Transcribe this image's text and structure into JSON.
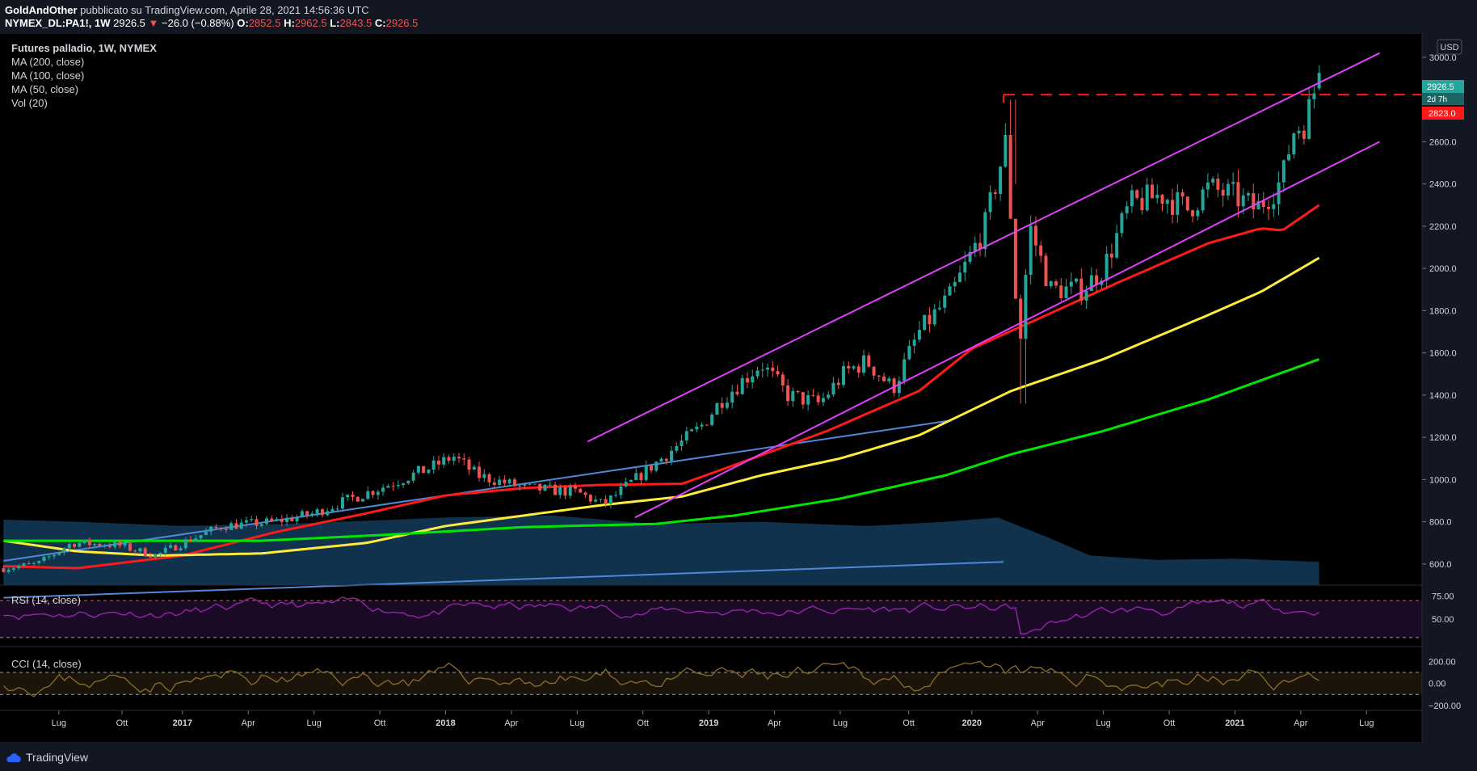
{
  "header": {
    "author": "GoldAndOther",
    "published_text": "pubblicato su TradingView.com, Aprile 28, 2021 14:56:36 UTC",
    "symbol": "NYMEX_DL:PA1!, 1W",
    "last": "2926.5",
    "change": "−26.0 (−0.88%)",
    "o_label": "O:",
    "o_value": "2852.5",
    "h_label": "H:",
    "h_value": "2962.5",
    "l_label": "L:",
    "l_value": "2843.5",
    "c_label": "C:",
    "c_value": "2926.5"
  },
  "legend": {
    "title": "Futures palladio, 1W, NYMEX",
    "ma200": "MA (200, close)",
    "ma100": "MA (100, close)",
    "ma50": "MA (50, close)",
    "vol": "Vol (20)",
    "rsi": "RSI (14, close)",
    "cci": "CCI (14, close)"
  },
  "price_axis": {
    "currency": "USD",
    "last_price_label": "2926.5",
    "last_price_sub": "2d 7h",
    "resistance_label": "2823.0"
  },
  "footer": {
    "brand": "TradingView"
  },
  "colors": {
    "up": "#26a69a",
    "down": "#ef5350",
    "ma200": "#00e600",
    "ma100": "#ffeb3b",
    "ma50": "#ff1a1a",
    "channel": "#e040fb",
    "trend": "#4f87d9",
    "volume": "#11324d",
    "rsi": "#9c27b0",
    "cci": "#8d6e28"
  },
  "chart_data": {
    "type": "candlestick",
    "title": "Futures palladio, 1W, NYMEX",
    "timeframe": "1W",
    "currency": "USD",
    "x_ticks": [
      {
        "label": "Lug",
        "date": 2016.53
      },
      {
        "label": "Ott",
        "date": 2016.77
      },
      {
        "label": "2017",
        "date": 2017.0,
        "bold": true
      },
      {
        "label": "Apr",
        "date": 2017.25
      },
      {
        "label": "Lug",
        "date": 2017.5
      },
      {
        "label": "Ott",
        "date": 2017.75
      },
      {
        "label": "2018",
        "date": 2018.0,
        "bold": true
      },
      {
        "label": "Apr",
        "date": 2018.25
      },
      {
        "label": "Lug",
        "date": 2018.5
      },
      {
        "label": "Ott",
        "date": 2018.75
      },
      {
        "label": "2019",
        "date": 2019.0,
        "bold": true
      },
      {
        "label": "Apr",
        "date": 2019.25
      },
      {
        "label": "Lug",
        "date": 2019.5
      },
      {
        "label": "Ott",
        "date": 2019.76
      },
      {
        "label": "2020",
        "date": 2020.0,
        "bold": true
      },
      {
        "label": "Apr",
        "date": 2020.25
      },
      {
        "label": "Lug",
        "date": 2020.5
      },
      {
        "label": "Ott",
        "date": 2020.75
      },
      {
        "label": "2021",
        "date": 2021.0,
        "bold": true
      },
      {
        "label": "Apr",
        "date": 2021.25
      },
      {
        "label": "Lug",
        "date": 2021.5
      }
    ],
    "y_ticks": [
      "600.0",
      "800.0",
      "1000.0",
      "1200.0",
      "1400.0",
      "1600.0",
      "1800.0",
      "2000.0",
      "2200.0",
      "2400.0",
      "2600.0",
      "3000.0"
    ],
    "ylim": [
      500,
      3080
    ],
    "close_anchors": [
      [
        2016.32,
        580
      ],
      [
        2016.45,
        600
      ],
      [
        2016.58,
        700
      ],
      [
        2016.75,
        690
      ],
      [
        2016.9,
        640
      ],
      [
        2017.0,
        700
      ],
      [
        2017.15,
        780
      ],
      [
        2017.35,
        800
      ],
      [
        2017.5,
        840
      ],
      [
        2017.62,
        900
      ],
      [
        2017.75,
        960
      ],
      [
        2017.95,
        1060
      ],
      [
        2018.03,
        1110
      ],
      [
        2018.12,
        1020
      ],
      [
        2018.3,
        960
      ],
      [
        2018.5,
        940
      ],
      [
        2018.6,
        880
      ],
      [
        2018.72,
        1000
      ],
      [
        2018.85,
        1130
      ],
      [
        2018.97,
        1250
      ],
      [
        2019.05,
        1380
      ],
      [
        2019.2,
        1550
      ],
      [
        2019.3,
        1400
      ],
      [
        2019.42,
        1360
      ],
      [
        2019.52,
        1510
      ],
      [
        2019.6,
        1560
      ],
      [
        2019.7,
        1430
      ],
      [
        2019.8,
        1700
      ],
      [
        2019.92,
        1870
      ],
      [
        2020.05,
        2200
      ],
      [
        2020.13,
        2600
      ],
      [
        2020.18,
        1600
      ],
      [
        2020.22,
        2200
      ],
      [
        2020.3,
        1900
      ],
      [
        2020.42,
        1900
      ],
      [
        2020.5,
        2000
      ],
      [
        2020.6,
        2300
      ],
      [
        2020.72,
        2350
      ],
      [
        2020.82,
        2280
      ],
      [
        2020.9,
        2380
      ],
      [
        2021.0,
        2340
      ],
      [
        2021.08,
        2280
      ],
      [
        2021.18,
        2420
      ],
      [
        2021.22,
        2650
      ],
      [
        2021.27,
        2700
      ],
      [
        2021.32,
        2926
      ]
    ],
    "moving_averages": [
      {
        "name": "MA (50, close)",
        "points": [
          [
            2016.32,
            590
          ],
          [
            2016.6,
            580
          ],
          [
            2017.0,
            640
          ],
          [
            2017.35,
            750
          ],
          [
            2017.7,
            840
          ],
          [
            2018.0,
            925
          ],
          [
            2018.3,
            960
          ],
          [
            2018.6,
            975
          ],
          [
            2018.9,
            980
          ],
          [
            2019.1,
            1070
          ],
          [
            2019.45,
            1230
          ],
          [
            2019.8,
            1420
          ],
          [
            2020.0,
            1620
          ],
          [
            2020.25,
            1760
          ],
          [
            2020.55,
            1930
          ],
          [
            2020.9,
            2120
          ],
          [
            2021.1,
            2190
          ],
          [
            2021.18,
            2180
          ],
          [
            2021.32,
            2300
          ]
        ]
      },
      {
        "name": "MA (100, close)",
        "points": [
          [
            2016.32,
            710
          ],
          [
            2016.6,
            660
          ],
          [
            2016.9,
            640
          ],
          [
            2017.3,
            650
          ],
          [
            2017.7,
            700
          ],
          [
            2018.0,
            780
          ],
          [
            2018.3,
            830
          ],
          [
            2018.6,
            880
          ],
          [
            2018.9,
            920
          ],
          [
            2019.2,
            1020
          ],
          [
            2019.5,
            1100
          ],
          [
            2019.8,
            1210
          ],
          [
            2020.05,
            1360
          ],
          [
            2020.15,
            1420
          ],
          [
            2020.5,
            1570
          ],
          [
            2020.9,
            1780
          ],
          [
            2021.1,
            1890
          ],
          [
            2021.32,
            2050
          ]
        ]
      },
      {
        "name": "MA (200, close)",
        "points": [
          [
            2016.32,
            710
          ],
          [
            2016.8,
            710
          ],
          [
            2017.3,
            710
          ],
          [
            2017.8,
            740
          ],
          [
            2018.3,
            775
          ],
          [
            2018.8,
            790
          ],
          [
            2019.1,
            830
          ],
          [
            2019.5,
            910
          ],
          [
            2019.9,
            1020
          ],
          [
            2020.15,
            1120
          ],
          [
            2020.5,
            1230
          ],
          [
            2020.9,
            1380
          ],
          [
            2021.32,
            1570
          ]
        ]
      }
    ],
    "channel_lines": [
      {
        "points": [
          [
            2018.54,
            1180
          ],
          [
            2021.55,
            3020
          ]
        ]
      },
      {
        "points": [
          [
            2018.72,
            820
          ],
          [
            2021.55,
            2600
          ]
        ]
      }
    ],
    "trend_lines": [
      {
        "points": [
          [
            2016.32,
            615
          ],
          [
            2019.92,
            1280
          ]
        ]
      },
      {
        "points": [
          [
            2016.32,
            440
          ],
          [
            2020.12,
            610
          ]
        ]
      }
    ],
    "resistance": {
      "y": 2823.0,
      "from": 2020.12
    },
    "volume_profile": [
      [
        2016.32,
        810
      ],
      [
        2016.6,
        800
      ],
      [
        2017.0,
        780
      ],
      [
        2017.4,
        790
      ],
      [
        2018.0,
        820
      ],
      [
        2018.4,
        830
      ],
      [
        2018.8,
        790
      ],
      [
        2019.2,
        800
      ],
      [
        2019.6,
        780
      ],
      [
        2019.9,
        800
      ],
      [
        2020.1,
        820
      ],
      [
        2020.3,
        720
      ],
      [
        2020.45,
        640
      ],
      [
        2020.7,
        620
      ],
      [
        2021.0,
        625
      ],
      [
        2021.32,
        610
      ]
    ],
    "rsi": {
      "ticks": [
        "75.00",
        "50.00"
      ],
      "levels": [
        70,
        30
      ],
      "ylim": [
        22,
        85
      ]
    },
    "cci": {
      "ticks": [
        "200.00",
        "0.00",
        "−200.00"
      ],
      "levels": [
        100,
        -100
      ],
      "ylim": [
        -230,
        320
      ]
    }
  }
}
